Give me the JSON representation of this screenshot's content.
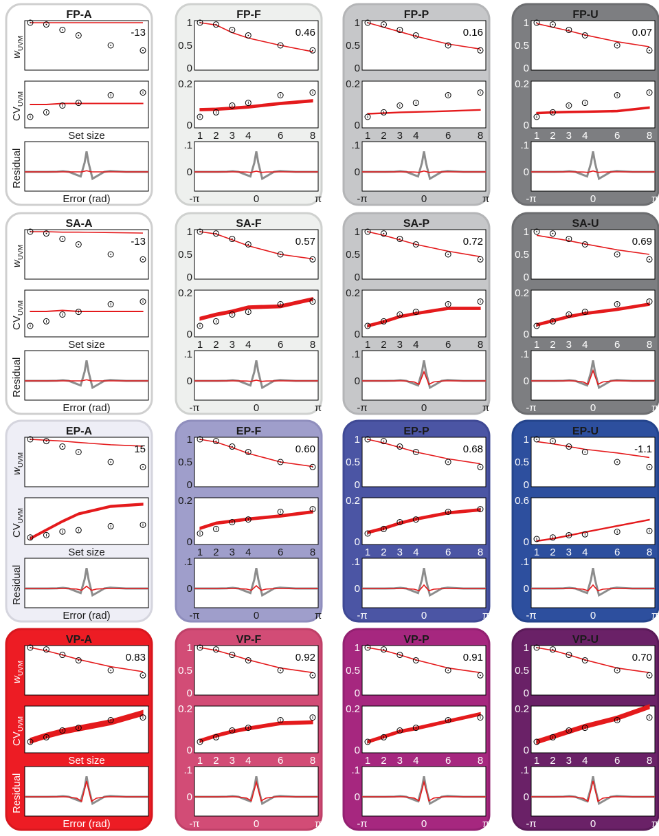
{
  "chart_data": {
    "type": "grid of model-fit panels",
    "columns": [
      "A",
      "F",
      "P",
      "U"
    ],
    "rows": [
      "FP",
      "SA",
      "EP",
      "VP"
    ],
    "labels": {
      "w_prefix": "w",
      "w_sub": "UVM",
      "cv_prefix": "CV",
      "cv_sub": "UVM",
      "residual": "Residual",
      "set_size": "Set size",
      "error": "Error (rad)"
    },
    "set_sizes": [
      1,
      2,
      3,
      4,
      6,
      8
    ],
    "set_size_ticks": [
      "1",
      "2",
      "3",
      "4",
      "6",
      "8"
    ],
    "error_ticks": [
      "-π",
      "0",
      "π"
    ],
    "w_ticks": [
      "0",
      "0.5",
      "1"
    ],
    "residual_ticks": [
      ".1",
      "0"
    ],
    "w_data": [
      1.0,
      0.96,
      0.84,
      0.72,
      0.5,
      0.39
    ],
    "cv_data": [
      0.04,
      0.062,
      0.095,
      0.108,
      0.145,
      0.158
    ],
    "residual_data": {
      "x": [
        -3.14,
        -2.5,
        -2.0,
        -1.5,
        -1.2,
        -0.9,
        -0.6,
        -0.3,
        -0.1,
        0.0,
        0.1,
        0.3,
        0.6,
        0.9,
        1.2,
        1.5,
        2.0,
        2.5,
        3.14
      ],
      "y": [
        0.0,
        0.0,
        0.0,
        0.001,
        0.003,
        0.0,
        -0.01,
        -0.02,
        0.04,
        0.09,
        0.04,
        -0.03,
        -0.015,
        0.0,
        0.004,
        0.002,
        0.0,
        0.0,
        0.0
      ]
    },
    "colors": {
      "data_marker": "#000000",
      "model": "#e41a1c",
      "residual_data": "#8c8c8c"
    },
    "panels": [
      {
        "title": "FP-A",
        "bg": "#ffffff",
        "border": "#cfcfcf",
        "w_fit_label": "-13",
        "w_model": [
          1.0,
          1.0,
          1.0,
          1.0,
          1.0,
          1.0
        ],
        "cv_model": [
          0.1,
          0.1,
          0.105,
          0.105,
          0.105,
          0.105
        ],
        "cv_width": 0.003,
        "cv_scale": "custom",
        "cv_ticks": [],
        "res_amp": 0.005,
        "res_neg": 0.0,
        "show_xlabel": true,
        "show_ticklabels": false
      },
      {
        "title": "FP-F",
        "bg": "#eef0ee",
        "border": "#cfd1cf",
        "w_fit_label": "0.46",
        "w_model": [
          1.0,
          0.95,
          0.78,
          0.66,
          0.5,
          0.36
        ],
        "cv_model": [
          0.075,
          0.077,
          0.082,
          0.088,
          0.105,
          0.118
        ],
        "cv_width": 0.012,
        "cv_scale": "0.2",
        "cv_ticks": [
          "0.2",
          "0"
        ],
        "res_amp": 0.003,
        "res_neg": 0.002,
        "show_xlabel": false,
        "show_ticklabels": true
      },
      {
        "title": "FP-P",
        "bg": "#c6c7c9",
        "border": "#b4b5b7",
        "w_fit_label": "0.16",
        "w_model": [
          1.0,
          0.9,
          0.8,
          0.7,
          0.53,
          0.42
        ],
        "cv_model": [
          0.055,
          0.058,
          0.062,
          0.064,
          0.068,
          0.074
        ],
        "cv_width": 0.004,
        "cv_scale": "0.2",
        "cv_ticks": [
          "0.2",
          "0"
        ],
        "res_amp": 0.004,
        "res_neg": 0.002,
        "show_xlabel": false,
        "show_ticklabels": true
      },
      {
        "title": "FP-U",
        "bg": "#7d7e81",
        "border": "#6c6d70",
        "w_fit_label": "0.07",
        "w_model": [
          0.98,
          0.9,
          0.82,
          0.73,
          0.58,
          0.47
        ],
        "cv_model": [
          0.058,
          0.062,
          0.064,
          0.065,
          0.068,
          0.085
        ],
        "cv_width": 0.008,
        "cv_scale": "0.2",
        "cv_ticks": [
          "0.2",
          "0"
        ],
        "res_amp": 0.004,
        "res_neg": 0.002,
        "show_xlabel": false,
        "show_ticklabels": true
      },
      {
        "title": "SA-A",
        "bg": "#ffffff",
        "border": "#cfcfcf",
        "w_fit_label": "-13",
        "w_model": [
          1.0,
          1.0,
          0.99,
          0.99,
          0.98,
          0.97
        ],
        "cv_model": [
          0.11,
          0.11,
          0.115,
          0.11,
          0.11,
          0.11
        ],
        "cv_width": 0.003,
        "cv_scale": "custom",
        "cv_ticks": [],
        "res_amp": 0.005,
        "res_neg": 0.0,
        "show_xlabel": true,
        "show_ticklabels": false
      },
      {
        "title": "SA-F",
        "bg": "#eef0ee",
        "border": "#cfd1cf",
        "w_fit_label": "0.57",
        "w_model": [
          1.0,
          0.95,
          0.82,
          0.69,
          0.5,
          0.4
        ],
        "cv_model": [
          0.075,
          0.095,
          0.11,
          0.13,
          0.135,
          0.17
        ],
        "cv_width": 0.015,
        "cv_scale": "0.2",
        "cv_ticks": [
          "0.2",
          "0"
        ],
        "res_amp": 0.003,
        "res_neg": 0.002,
        "show_xlabel": false,
        "show_ticklabels": true
      },
      {
        "title": "SA-P",
        "bg": "#c6c7c9",
        "border": "#b4b5b7",
        "w_fit_label": "0.72",
        "w_model": [
          1.0,
          0.92,
          0.82,
          0.72,
          0.57,
          0.45
        ],
        "cv_model": [
          0.04,
          0.06,
          0.085,
          0.1,
          0.125,
          0.125
        ],
        "cv_width": 0.012,
        "cv_scale": "0.2",
        "cv_ticks": [
          "0.2",
          "0"
        ],
        "res_amp": 0.04,
        "res_neg": 0.015,
        "show_xlabel": false,
        "show_ticklabels": true
      },
      {
        "title": "SA-U",
        "bg": "#7d7e81",
        "border": "#6c6d70",
        "w_fit_label": "0.69",
        "w_model": [
          0.92,
          0.86,
          0.8,
          0.73,
          0.6,
          0.5
        ],
        "cv_model": [
          0.045,
          0.065,
          0.085,
          0.1,
          0.12,
          0.145
        ],
        "cv_width": 0.012,
        "cv_scale": "0.2",
        "cv_ticks": [
          "0.2",
          "0"
        ],
        "res_amp": 0.045,
        "res_neg": 0.015,
        "show_xlabel": false,
        "show_ticklabels": true
      },
      {
        "title": "EP-A",
        "bg": "#eeeef6",
        "border": "#d5d5de",
        "w_fit_label": "15",
        "w_model": [
          1.0,
          0.98,
          0.96,
          0.93,
          0.88,
          0.85
        ],
        "cv_model": [
          0.03,
          0.11,
          0.19,
          0.26,
          0.33,
          0.35
        ],
        "cv_width": 0.02,
        "cv_scale": "custom",
        "cv_ticks": [],
        "res_amp": 0.01,
        "res_neg": 0.008,
        "show_xlabel": true,
        "show_ticklabels": false
      },
      {
        "title": "EP-F",
        "bg": "#9f9ecb",
        "border": "#8f8ebd",
        "w_fit_label": "0.60",
        "w_model": [
          1.0,
          0.94,
          0.82,
          0.69,
          0.5,
          0.4
        ],
        "cv_model": [
          0.065,
          0.09,
          0.1,
          0.11,
          0.125,
          0.145
        ],
        "cv_width": 0.012,
        "cv_scale": "0.2",
        "cv_ticks": [
          "0.2",
          "0"
        ],
        "res_amp": 0.012,
        "res_neg": 0.008,
        "show_xlabel": false,
        "show_ticklabels": true
      },
      {
        "title": "EP-P",
        "bg": "#4b55a4",
        "border": "#3f4995",
        "w_fit_label": "0.68",
        "w_model": [
          1.0,
          0.92,
          0.82,
          0.72,
          0.57,
          0.46
        ],
        "cv_model": [
          0.045,
          0.065,
          0.09,
          0.11,
          0.14,
          0.155
        ],
        "cv_width": 0.012,
        "cv_scale": "0.2",
        "cv_ticks": [
          "0.2",
          "0"
        ],
        "res_amp": 0.015,
        "res_neg": 0.01,
        "show_xlabel": false,
        "show_ticklabels": true
      },
      {
        "title": "EP-U",
        "bg": "#2d4f9e",
        "border": "#24448c",
        "w_fit_label": "-1.1",
        "w_model": [
          0.95,
          0.9,
          0.84,
          0.78,
          0.7,
          0.6
        ],
        "cv_model": [
          0.01,
          0.045,
          0.09,
          0.14,
          0.23,
          0.32
        ],
        "cv_width": 0.012,
        "cv_scale": "0.6",
        "cv_ticks": [
          "0.6",
          "0"
        ],
        "res_amp": 0.015,
        "res_neg": 0.01,
        "show_xlabel": false,
        "show_ticklabels": true
      },
      {
        "title": "VP-A",
        "bg": "#ed1c24",
        "border": "#d8171e",
        "w_fit_label": "0.83",
        "w_model": [
          1.0,
          0.93,
          0.84,
          0.74,
          0.58,
          0.47
        ],
        "cv_model": [
          0.045,
          0.07,
          0.09,
          0.105,
          0.135,
          0.18
        ],
        "cv_width": 0.025,
        "cv_scale": "custom",
        "cv_ticks": [],
        "res_amp": 0.07,
        "res_neg": 0.02,
        "show_xlabel": true,
        "show_ticklabels": false
      },
      {
        "title": "VP-F",
        "bg": "#d24c76",
        "border": "#bf4068",
        "w_fit_label": "0.92",
        "w_model": [
          1.0,
          0.94,
          0.84,
          0.73,
          0.55,
          0.45
        ],
        "cv_model": [
          0.045,
          0.07,
          0.09,
          0.105,
          0.13,
          0.135
        ],
        "cv_width": 0.015,
        "cv_scale": "0.2",
        "cv_ticks": [
          "0.2",
          "0"
        ],
        "res_amp": 0.065,
        "res_neg": 0.018,
        "show_xlabel": false,
        "show_ticklabels": true
      },
      {
        "title": "VP-P",
        "bg": "#a6277f",
        "border": "#932071",
        "w_fit_label": "0.91",
        "w_model": [
          1.0,
          0.94,
          0.84,
          0.73,
          0.55,
          0.45
        ],
        "cv_model": [
          0.04,
          0.065,
          0.09,
          0.105,
          0.14,
          0.175
        ],
        "cv_width": 0.014,
        "cv_scale": "0.2",
        "cv_ticks": [
          "0.2",
          "0"
        ],
        "res_amp": 0.065,
        "res_neg": 0.018,
        "show_xlabel": false,
        "show_ticklabels": true
      },
      {
        "title": "VP-U",
        "bg": "#6a2167",
        "border": "#5a1a58",
        "w_fit_label": "0.70",
        "w_model": [
          1.0,
          0.94,
          0.84,
          0.73,
          0.55,
          0.45
        ],
        "cv_model": [
          0.04,
          0.065,
          0.09,
          0.115,
          0.155,
          0.21
        ],
        "cv_width": 0.02,
        "cv_scale": "0.2",
        "cv_ticks": [
          "0.2",
          "0"
        ],
        "res_amp": 0.07,
        "res_neg": 0.02,
        "show_xlabel": false,
        "show_ticklabels": true
      }
    ]
  }
}
